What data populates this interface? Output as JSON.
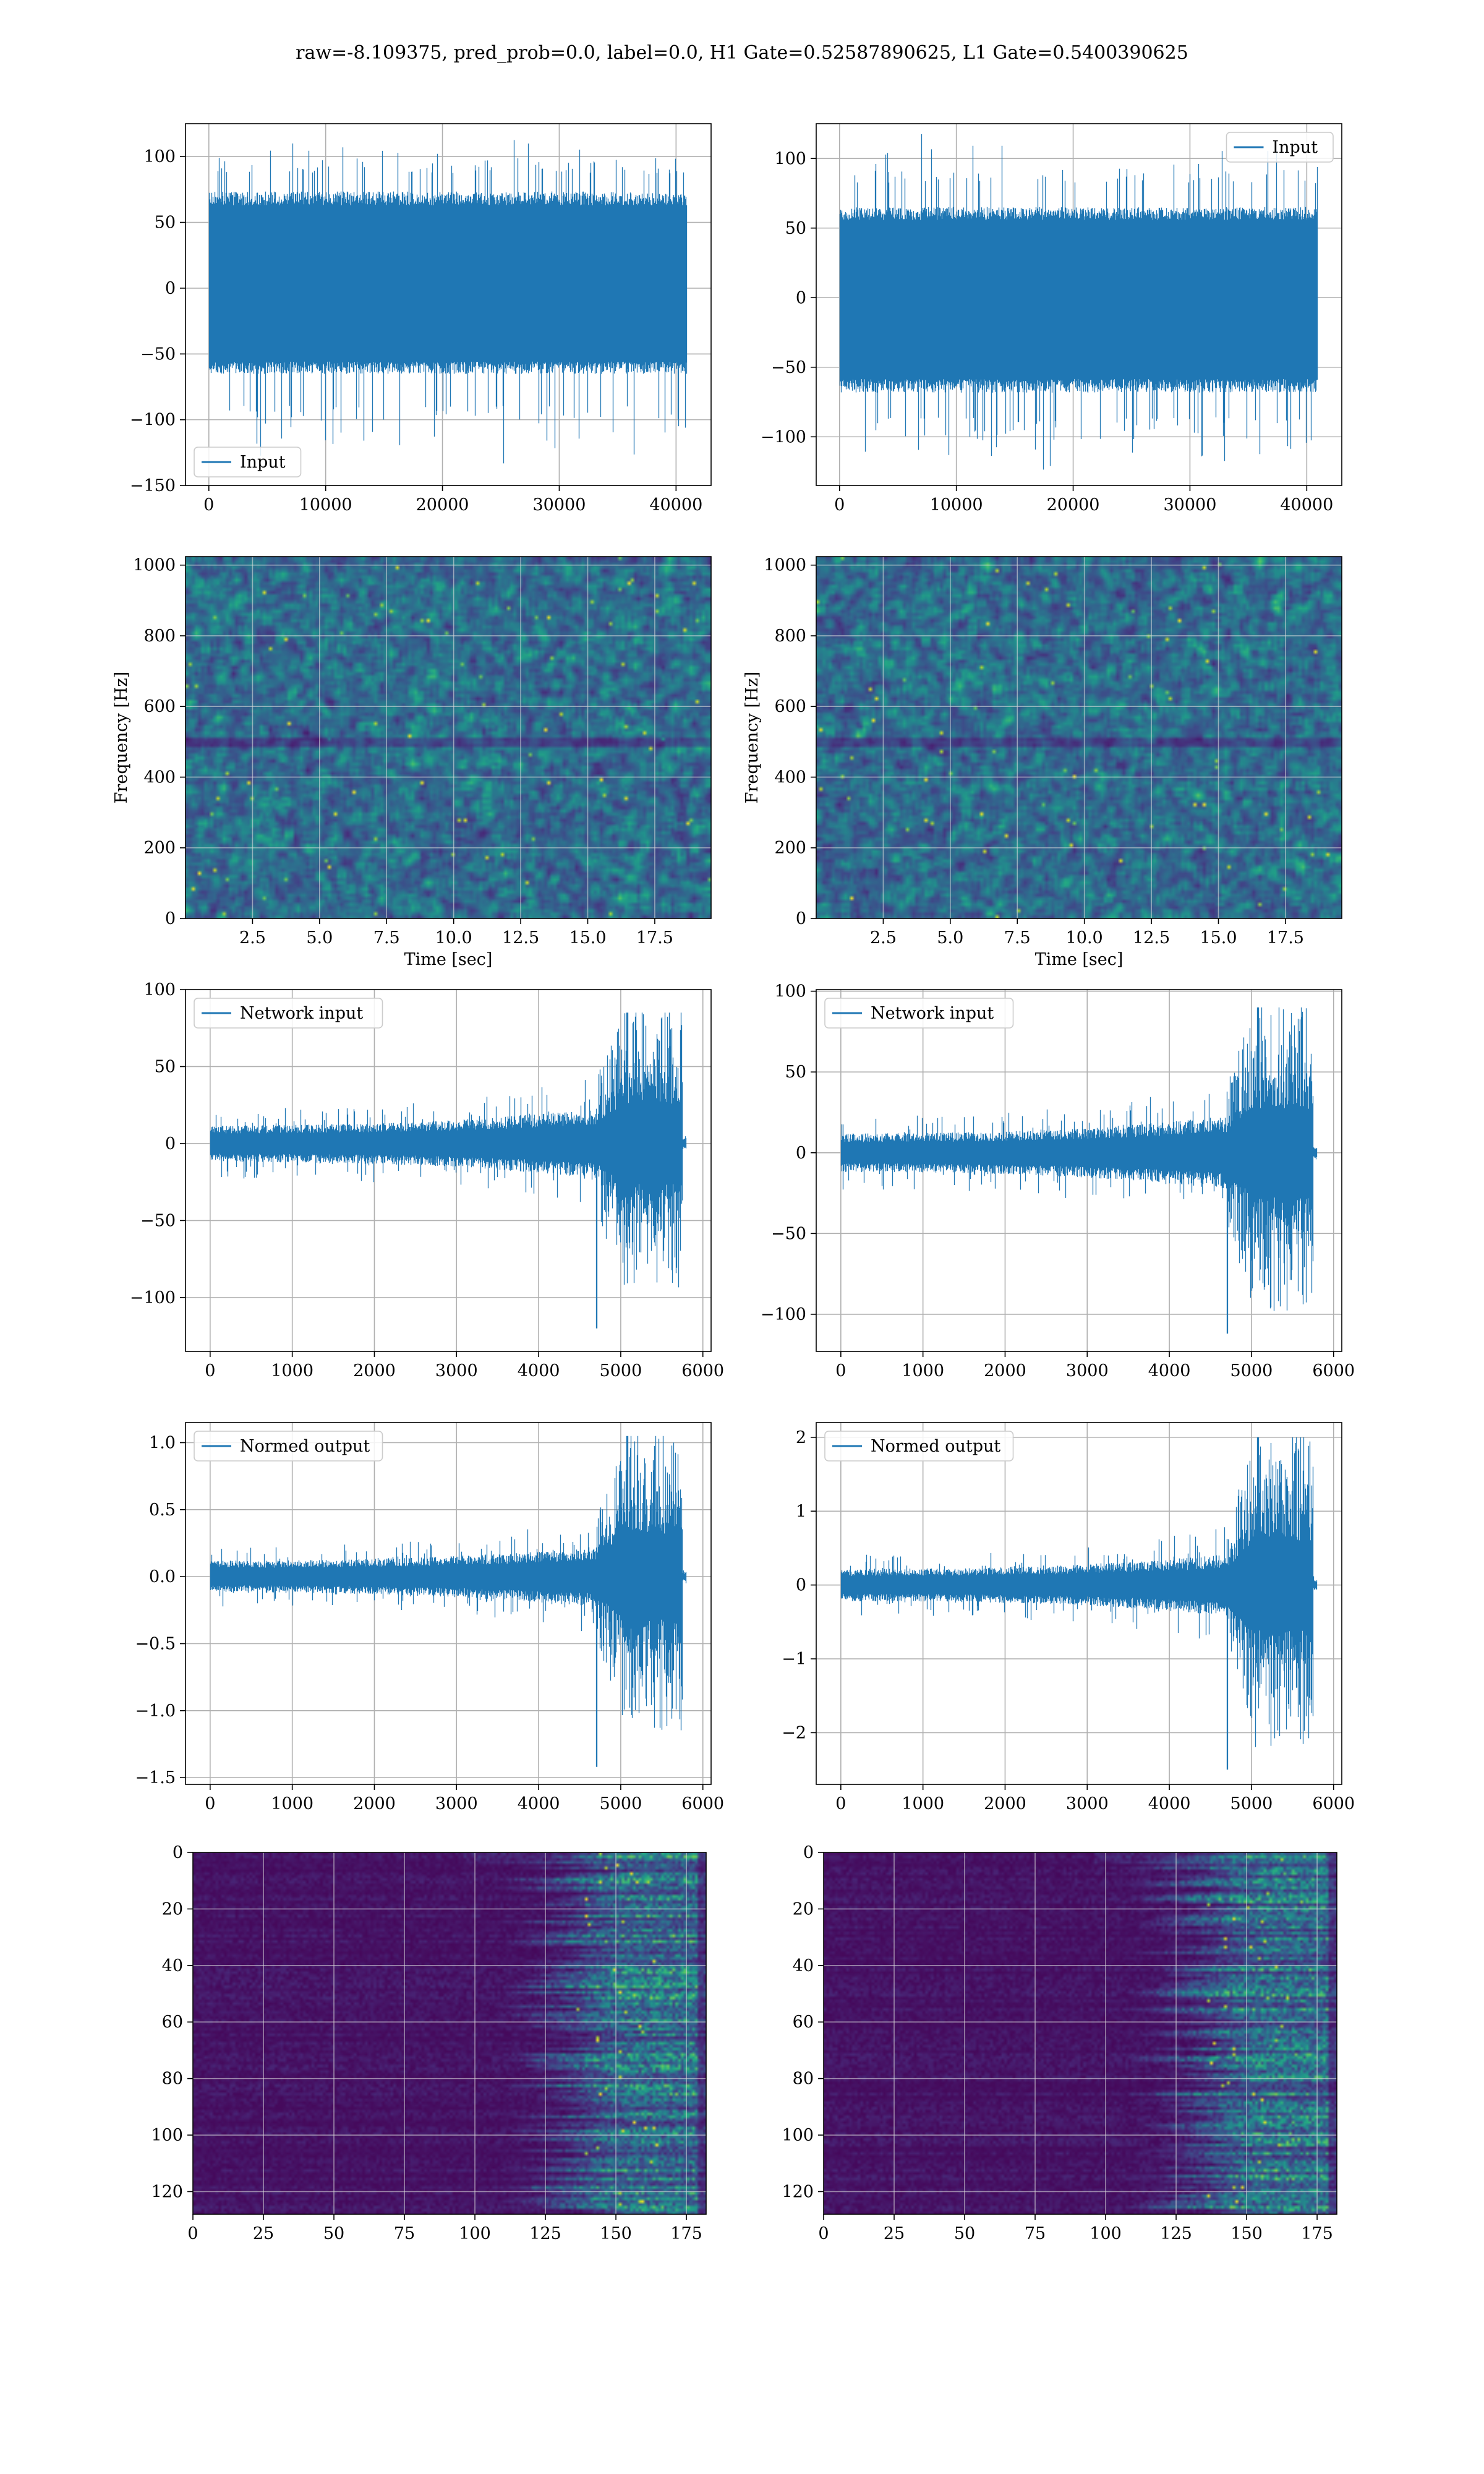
{
  "figure": {
    "title": "raw=-8.109375, pred_prob=0.0, label=0.0, H1 Gate=0.52587890625, L1 Gate=0.5400390625",
    "line_color": "#1f77b4"
  },
  "chart_data": [
    {
      "type": "line",
      "name": "row1-left-input",
      "legend": "Input",
      "legend_loc": "lower-left",
      "xlim": [
        -2000,
        43000
      ],
      "ylim": [
        -150,
        125
      ],
      "xticks": [
        0,
        10000,
        20000,
        30000,
        40000
      ],
      "yticks": [
        -150,
        -100,
        -50,
        0,
        50,
        100
      ],
      "signal": {
        "n_samples": 40960,
        "base_low": -62,
        "base_high": 70,
        "spike_min": -140,
        "spike_max": 118,
        "envelope": "stationary"
      },
      "grid": true,
      "xlabel": "",
      "ylabel": ""
    },
    {
      "type": "line",
      "name": "row1-right-input",
      "legend": "Input",
      "legend_loc": "upper-right",
      "xlim": [
        -2000,
        43000
      ],
      "ylim": [
        -135,
        125
      ],
      "xticks": [
        0,
        10000,
        20000,
        30000,
        40000
      ],
      "yticks": [
        -100,
        -50,
        0,
        50,
        100
      ],
      "signal": {
        "n_samples": 40960,
        "base_low": -65,
        "base_high": 62,
        "spike_min": -125,
        "spike_max": 120,
        "envelope": "stationary"
      },
      "grid": true,
      "xlabel": "",
      "ylabel": ""
    },
    {
      "type": "heatmap",
      "name": "row2-left-spectrogram",
      "xlim": [
        0,
        19.6
      ],
      "ylim": [
        0,
        1024
      ],
      "xticks": [
        2.5,
        5.0,
        7.5,
        10.0,
        12.5,
        15.0,
        17.5
      ],
      "yticks": [
        0,
        200,
        400,
        600,
        800,
        1000
      ],
      "xlabel": "Time [sec]",
      "ylabel": "Frequency [Hz]",
      "colormap": "viridis",
      "pattern": "noise",
      "grid": true
    },
    {
      "type": "heatmap",
      "name": "row2-right-spectrogram",
      "xlim": [
        0,
        19.6
      ],
      "ylim": [
        0,
        1024
      ],
      "xticks": [
        2.5,
        5.0,
        7.5,
        10.0,
        12.5,
        15.0,
        17.5
      ],
      "yticks": [
        0,
        200,
        400,
        600,
        800,
        1000
      ],
      "xlabel": "Time [sec]",
      "ylabel": "Frequency [Hz]",
      "colormap": "viridis",
      "pattern": "noise",
      "grid": true
    },
    {
      "type": "line",
      "name": "row3-left-network-input",
      "legend": "Network input",
      "legend_loc": "upper-left",
      "xlim": [
        -300,
        6100
      ],
      "ylim": [
        -135,
        100
      ],
      "xticks": [
        0,
        1000,
        2000,
        3000,
        4000,
        5000,
        6000
      ],
      "yticks": [
        -100,
        -50,
        0,
        50,
        100
      ],
      "signal": {
        "n_samples": 5800,
        "base": 12,
        "end_peak": 85,
        "neg_peak": -120,
        "burst_start": 4700,
        "burst_end": 5750,
        "tail_end": 5800,
        "envelope": "chirp"
      },
      "grid": true,
      "xlabel": "",
      "ylabel": ""
    },
    {
      "type": "line",
      "name": "row3-right-network-input",
      "legend": "Network input",
      "legend_loc": "upper-left",
      "xlim": [
        -300,
        6100
      ],
      "ylim": [
        -123,
        101
      ],
      "xticks": [
        0,
        1000,
        2000,
        3000,
        4000,
        5000,
        6000
      ],
      "yticks": [
        -100,
        -50,
        0,
        50,
        100
      ],
      "signal": {
        "n_samples": 5800,
        "base": 12,
        "end_peak": 90,
        "neg_peak": -112,
        "burst_start": 4700,
        "burst_end": 5750,
        "tail_end": 5800,
        "envelope": "chirp"
      },
      "grid": true,
      "xlabel": "",
      "ylabel": ""
    },
    {
      "type": "line",
      "name": "row4-left-normed-output",
      "legend": "Normed output",
      "legend_loc": "upper-left",
      "xlim": [
        -300,
        6100
      ],
      "ylim": [
        -1.55,
        1.15
      ],
      "xticks": [
        0,
        1000,
        2000,
        3000,
        4000,
        5000,
        6000
      ],
      "yticks": [
        -1.5,
        -1.0,
        -0.5,
        0.0,
        0.5,
        1.0
      ],
      "signal": {
        "n_samples": 5800,
        "base": 0.12,
        "end_peak": 1.05,
        "neg_peak": -1.42,
        "burst_start": 4700,
        "burst_end": 5750,
        "tail_end": 5800,
        "envelope": "chirp"
      },
      "grid": true,
      "xlabel": "",
      "ylabel": ""
    },
    {
      "type": "line",
      "name": "row4-right-normed-output",
      "legend": "Normed output",
      "legend_loc": "upper-left",
      "xlim": [
        -300,
        6100
      ],
      "ylim": [
        -2.7,
        2.2
      ],
      "xticks": [
        0,
        1000,
        2000,
        3000,
        4000,
        5000,
        6000
      ],
      "yticks": [
        -2,
        -1,
        0,
        1,
        2
      ],
      "signal": {
        "n_samples": 5800,
        "base": 0.22,
        "end_peak": 2.0,
        "neg_peak": -2.5,
        "burst_start": 4700,
        "burst_end": 5750,
        "tail_end": 5800,
        "envelope": "chirp"
      },
      "grid": true,
      "xlabel": "",
      "ylabel": ""
    },
    {
      "type": "heatmap",
      "name": "row5-left-features",
      "xlim": [
        0,
        182
      ],
      "ylim": [
        128,
        0
      ],
      "xticks": [
        0,
        25,
        50,
        75,
        100,
        125,
        150,
        175
      ],
      "yticks": [
        0,
        20,
        40,
        60,
        80,
        100,
        120
      ],
      "xlabel": "",
      "ylabel": "",
      "colormap": "viridis",
      "pattern": "features",
      "grid": true
    },
    {
      "type": "heatmap",
      "name": "row5-right-features",
      "xlim": [
        0,
        182
      ],
      "ylim": [
        128,
        0
      ],
      "xticks": [
        0,
        25,
        50,
        75,
        100,
        125,
        150,
        175
      ],
      "yticks": [
        0,
        20,
        40,
        60,
        80,
        100,
        120
      ],
      "xlabel": "",
      "ylabel": "",
      "colormap": "viridis",
      "pattern": "features",
      "grid": true
    }
  ]
}
